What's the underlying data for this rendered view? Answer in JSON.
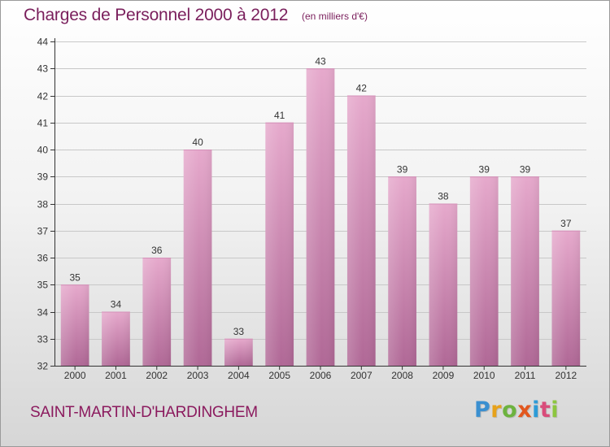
{
  "header": {
    "title": "Charges de Personnel 2000 à 2012",
    "unit_note": "(en milliers d'€)"
  },
  "footer": {
    "commune": "SAINT-MARTIN-D'HARDINGHEM",
    "logo": [
      "P",
      "r",
      "o",
      "x",
      "i",
      "t",
      "i"
    ]
  },
  "chart_data": {
    "type": "bar",
    "title": "Charges de Personnel 2000 à 2012",
    "subtitle": "(en milliers d'€)",
    "categories": [
      "2000",
      "2001",
      "2002",
      "2003",
      "2004",
      "2005",
      "2006",
      "2007",
      "2008",
      "2009",
      "2010",
      "2011",
      "2012"
    ],
    "values": [
      35,
      34,
      36,
      40,
      33,
      41,
      43,
      42,
      39,
      38,
      39,
      39,
      37
    ],
    "data_labels": [
      "35",
      "34",
      "36",
      "40",
      "33",
      "41",
      "43",
      "42",
      "39",
      "38",
      "39",
      "39",
      "37"
    ],
    "ylim": [
      32,
      44
    ],
    "yticks": [
      32,
      33,
      34,
      35,
      36,
      37,
      38,
      39,
      40,
      41,
      42,
      43,
      44
    ],
    "grid": true,
    "legend": "none",
    "colors": {
      "bar_top": "#e6a9cc",
      "bar_bottom": "#b06896",
      "grid": "#c8c8c8",
      "axis": "#333333",
      "text": "#333333",
      "title": "#7a1f5c"
    }
  }
}
